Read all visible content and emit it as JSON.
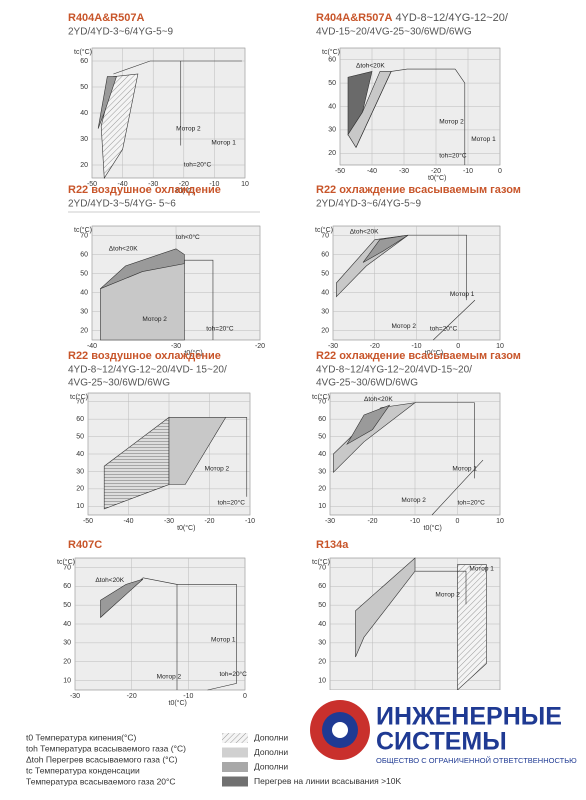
{
  "panels": [
    {
      "title": "R404A&R507A",
      "subtitle": [
        "2YD/4YD-3~6/4YG-5~9"
      ],
      "y_label": "tc(°C)",
      "x_label": "t0(°C)",
      "yticks": [
        "60",
        "50",
        "40",
        "30",
        "20"
      ],
      "xticks": [
        "-50",
        "-40",
        "-30",
        "-20",
        "-10",
        "10"
      ],
      "annotations": [
        "Мотор 2",
        "Мотор 1",
        "toh=20°C"
      ]
    },
    {
      "title": "R404A&R507A",
      "title_extra": "4YD-8~12/4YG-12~20/",
      "subtitle": [
        "4VD-15~20/4VG-25~30/6WD/6WG"
      ],
      "y_label": "tc(°C)",
      "x_label": "t0(°C)",
      "yticks": [
        "60",
        "50",
        "40",
        "30",
        "20"
      ],
      "xticks": [
        "-50",
        "-40",
        "-30",
        "-20",
        "-10",
        "0"
      ],
      "annotations": [
        "Δtoh<20K",
        "Мотор 2",
        "Мотор 1",
        "toh=20°C"
      ]
    },
    {
      "title": "R22 воздушное охлаждение",
      "subtitle": [
        "2YD/4YD-3~5/4YG- 5~6"
      ],
      "y_label": "tc(°C)",
      "x_label": "t0(°C)",
      "yticks": [
        "70",
        "60",
        "50",
        "40",
        "30",
        "20"
      ],
      "xticks": [
        "-40",
        "-30",
        "-20"
      ],
      "annotations": [
        "Δtoh<20K",
        "toh<0°C",
        "Мотор 2",
        "toh=20°C"
      ]
    },
    {
      "title": "R22 охлаждение всасываемым газом",
      "subtitle": [
        "2YD/4YD-3~6/4YG-5~9"
      ],
      "y_label": "tc(°C)",
      "x_label": "t0(°C)",
      "yticks": [
        "70",
        "60",
        "50",
        "40",
        "30",
        "20"
      ],
      "xticks": [
        "-30",
        "-20",
        "-10",
        "0",
        "10"
      ],
      "annotations": [
        "Δtoh<20K",
        "Мотор 1",
        "Мотор 2",
        "toh=20°C"
      ]
    },
    {
      "title": "R22 воздушное охлаждение",
      "subtitle": [
        "4YD-8~12/4YG-12~20/4VD- 15~20/",
        "4VG-25~30/6WD/6WG"
      ],
      "y_label": "tc(°C)",
      "x_label": "t0(°C)",
      "yticks": [
        "70",
        "60",
        "50",
        "40",
        "30",
        "20",
        "10"
      ],
      "xticks": [
        "-50",
        "-40",
        "-30",
        "-20",
        "-10"
      ],
      "annotations": [
        "Мотор 2",
        "toh=20°C"
      ]
    },
    {
      "title": "R22 охлаждение всасываемым газом",
      "subtitle": [
        "4YD-8~12/4YG-12~20/4VD-15~20/",
        "4VG-25~30/6WD/6WG"
      ],
      "y_label": "tc(°C)",
      "x_label": "t0(°C)",
      "yticks": [
        "70",
        "60",
        "50",
        "40",
        "30",
        "20",
        "10"
      ],
      "xticks": [
        "-30",
        "-20",
        "-10",
        "0",
        "10"
      ],
      "annotations": [
        "Δtoh<20K",
        "Мотор 1",
        "Мотор 2",
        "toh=20°C"
      ]
    },
    {
      "title": "R407C",
      "subtitle": [],
      "y_label": "tc(°C)",
      "x_label": "t0(°C)",
      "yticks": [
        "70",
        "60",
        "50",
        "40",
        "30",
        "20",
        "10"
      ],
      "xticks": [
        "-30",
        "-20",
        "-10",
        "0"
      ],
      "annotations": [
        "Δtoh<20K",
        "Мотор 1",
        "Мотор 2",
        "toh=20°C"
      ]
    },
    {
      "title": "R134a",
      "subtitle": [],
      "y_label": "tc(°C)",
      "x_label": "t0(°C)",
      "yticks": [
        "70",
        "60",
        "50",
        "40",
        "30",
        "20",
        "10"
      ],
      "xticks": [
        "-30",
        "-20",
        "-10",
        "0",
        "10"
      ],
      "annotations": [
        "Мотор 1",
        "Мотор 2"
      ]
    }
  ],
  "legend": {
    "terms": [
      "t0  Температура кипения(°C)",
      "toh Температура всасываемого газа (°C)",
      "Δtoh Перегрев всасываемого газа (°C)",
      "tc Температура конденсации",
      "Температура всасываемого газа 20°C"
    ],
    "swatches": [
      "Дополни",
      "Дополни",
      "Дополни",
      "Перегрев на линии всасывания >10K"
    ]
  },
  "logo": {
    "line1": "ИНЖЕНЕРНЫЕ",
    "line2": "СИСТЕМЫ",
    "tagline": "ОБЩЕСТВО С ОГРАНИЧЕННОЙ ОТВЕТСТВЕННОСТЬЮ"
  }
}
